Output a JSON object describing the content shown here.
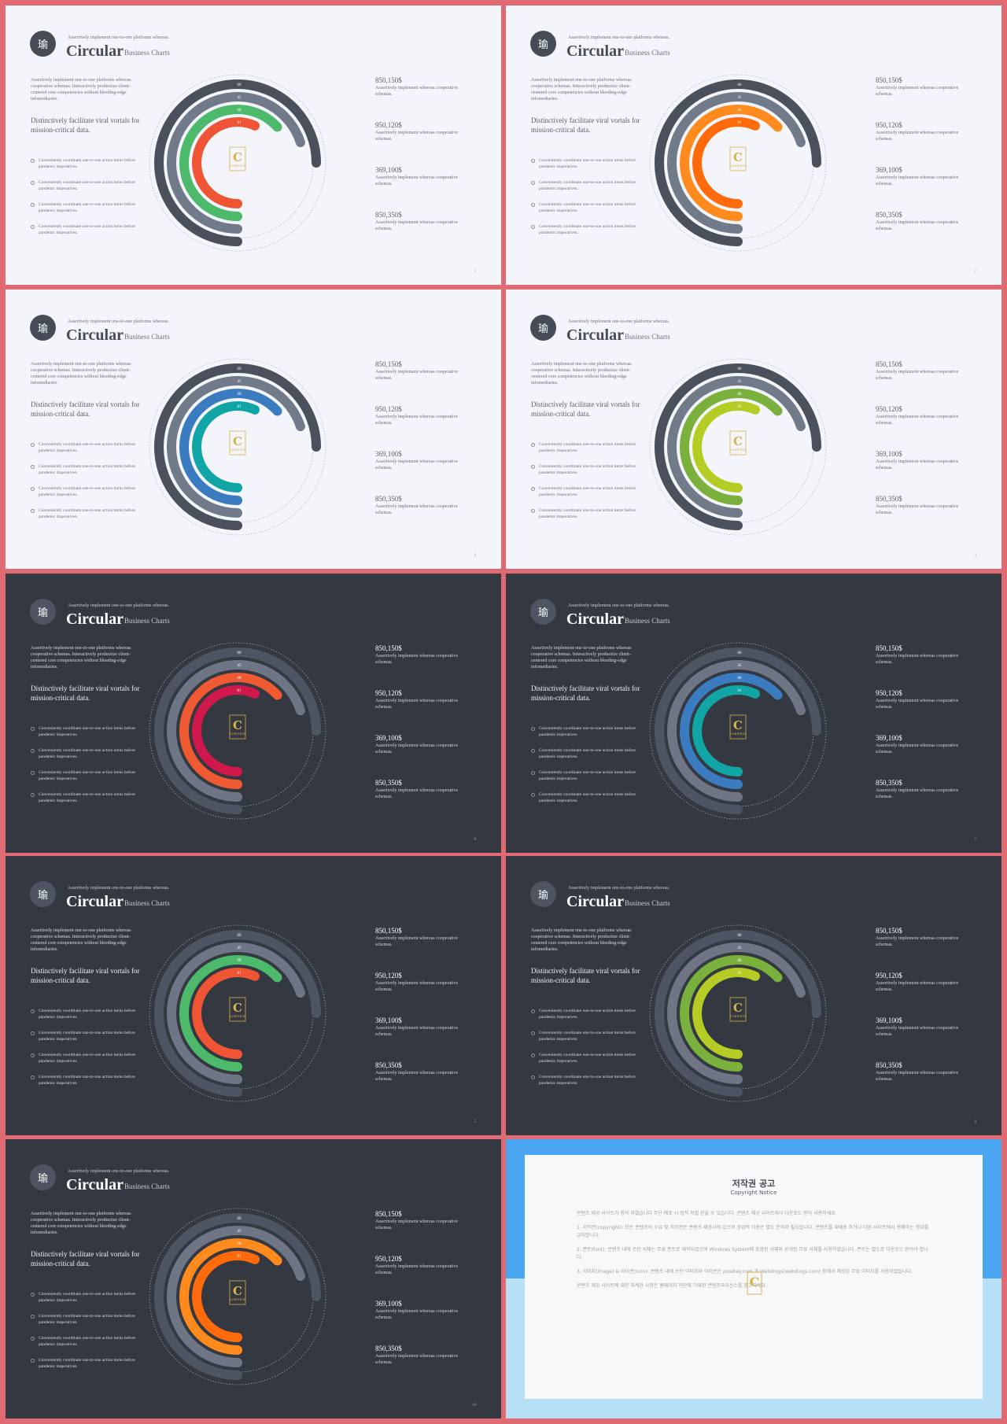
{
  "slide_text": {
    "logo_glyph": "瑜",
    "kicker": "Assertively implement one-to-one platforms whereas.",
    "title": "Circular",
    "subtitle": "Business Charts",
    "intro": "Assertively implement one-to-one platforms whereas cooperative schemas. Interactively productize client-centered core competencies without bleeding-edge infomediaries.",
    "lead": "Distinctively facilitate viral vortals for mission-critical data.",
    "bullets": [
      "Conveniently coordinate one-to-one action items before pandemic imperatives.",
      "Conveniently coordinate one-to-one action items before pandemic imperatives.",
      "Conveniently coordinate one-to-one action items before pandemic imperatives.",
      "Conveniently coordinate one-to-one action items before pandemic imperatives."
    ],
    "stats": [
      {
        "value": "850,150$",
        "desc": "Assertively implement whereas cooperative schemas."
      },
      {
        "value": "950,120$",
        "desc": "Assertively implement whereas cooperative schemas."
      },
      {
        "value": "369,100$",
        "desc": "Assertively implement whereas cooperative schemas."
      },
      {
        "value": "850,350$",
        "desc": "Assertively implement whereas cooperative schemas."
      }
    ],
    "logo_text": "CONTENTS"
  },
  "ring_labels": [
    "60",
    "45",
    "68",
    "81"
  ],
  "slides": [
    {
      "theme": "light",
      "page": "1",
      "colors": [
        "#4a505c",
        "#717a89",
        "#4cb96b",
        "#ef5434"
      ]
    },
    {
      "theme": "light",
      "page": "2",
      "colors": [
        "#4a505c",
        "#717a89",
        "#ff8a1e",
        "#ff6a0a"
      ]
    },
    {
      "theme": "light",
      "page": "4",
      "colors": [
        "#4a505c",
        "#717a89",
        "#3a7cbf",
        "#12a5a5"
      ]
    },
    {
      "theme": "light",
      "page": "3",
      "colors": [
        "#4a505c",
        "#717a89",
        "#7ab03c",
        "#b4cc24"
      ]
    },
    {
      "theme": "dark",
      "page": "6",
      "colors": [
        "#4e5562",
        "#6e7686",
        "#f05a32",
        "#d0184c"
      ]
    },
    {
      "theme": "dark",
      "page": "7",
      "colors": [
        "#4e5562",
        "#6e7686",
        "#3a7cbf",
        "#12a5a5"
      ]
    },
    {
      "theme": "dark",
      "page": "5",
      "colors": [
        "#4e5562",
        "#6e7686",
        "#4cb96b",
        "#ef5434"
      ]
    },
    {
      "theme": "dark",
      "page": "8",
      "colors": [
        "#4e5562",
        "#6e7686",
        "#7ab03c",
        "#b4cc24"
      ]
    },
    {
      "theme": "dark",
      "page": "10",
      "colors": [
        "#4e5562",
        "#6e7686",
        "#ff8a1e",
        "#ff6a0a"
      ]
    }
  ],
  "notice": {
    "title": "저작권 공고",
    "subtitle": "Copyright Notice",
    "paragraphs": [
      "콘텐츠 제공 사이트가 정의 하였습니다 무단 배포 시 법적 처벌 받을 수 있습니다. 콘텐츠 제공 사이트에서 다운로드 받아 사용하세요.",
      "1. 저작권(copyright): 모든 콘텐츠의 소유 및 저작권은 콘텐츠 제공사에 있으며 상업적 이용은 별도 문의가 필요합니다. 콘텐츠를 재배포 하거나 다른 사이트에서 판매하는 행위를 금지합니다.",
      "2. 폰트(font): 콘텐츠 내에 쓰인 서체는 무료 폰트로 제작되었으며 Windows System에 포함된 서체와 공개된 무료 서체를 사용하였습니다. 폰트는 별도로 다운로드 받아야 합니다.",
      "3. 이미지(image) & 아이콘(icon): 콘텐츠 내에 쓰인 이미지와 아이콘은 pixabay.com 과 Webdings(webdings.com) 등에서 제공된 무료 이미지를 사용하였습니다.",
      "콘텐츠 제공 사이트에 대한 자세한 사항은 홈페이지 하단에 기재된 콘텐츠라이선스를 참고하세요."
    ]
  }
}
